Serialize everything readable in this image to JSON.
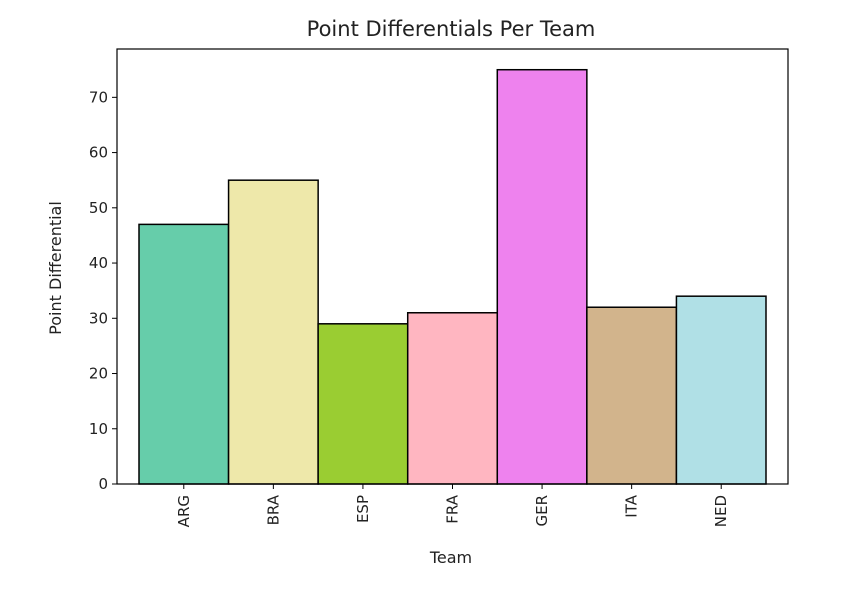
{
  "chart_data": {
    "type": "bar",
    "title": "Point Differentials Per Team",
    "xlabel": "Team",
    "ylabel": "Point Differential",
    "categories": [
      "ARG",
      "BRA",
      "ESP",
      "FRA",
      "GER",
      "ITA",
      "NED"
    ],
    "values": [
      47,
      55,
      29,
      31,
      75,
      32,
      34
    ],
    "colors": [
      "#66cdaa",
      "#eee8aa",
      "#9acd32",
      "#ffb6c1",
      "#ee82ee",
      "#d2b48c",
      "#b0e0e6"
    ],
    "ylim": [
      0,
      78.75
    ],
    "yticks": [
      0,
      10,
      20,
      30,
      40,
      50,
      60,
      70
    ],
    "grid": false,
    "bar_edge_color": "#000000"
  }
}
